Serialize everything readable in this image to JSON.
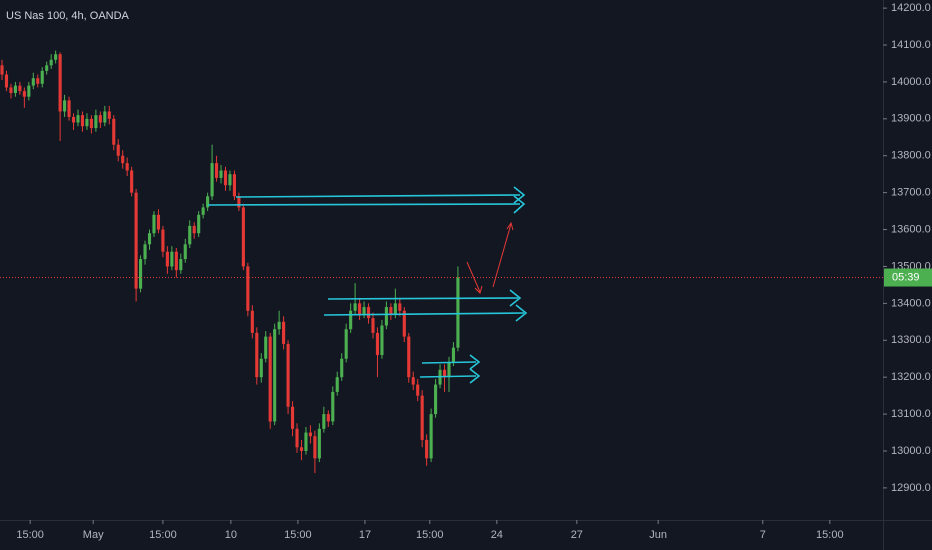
{
  "chart_data": {
    "type": "candlestick",
    "title": "US Nas 100, 4h, OANDA",
    "up_color": "#4caf50",
    "down_color": "#e53935",
    "countdown": "05:39",
    "xlim": [
      -0.45,
      197.1
    ],
    "ylim": [
      12813,
      14222
    ],
    "yticks": [
      {
        "value": 12900,
        "label": "12900.0"
      },
      {
        "value": 13000,
        "label": "13000.0"
      },
      {
        "value": 13100,
        "label": "13100.0"
      },
      {
        "value": 13200,
        "label": "13200.0"
      },
      {
        "value": 13300,
        "label": "13300.0"
      },
      {
        "value": 13400,
        "label": "13400.0"
      },
      {
        "value": 13500,
        "label": "13500.0"
      },
      {
        "value": 13600,
        "label": "13600.0"
      },
      {
        "value": 13700,
        "label": "13700.0"
      },
      {
        "value": 13800,
        "label": "13800.0"
      },
      {
        "value": 13900,
        "label": "13900.0"
      },
      {
        "value": 14000,
        "label": "14000.0"
      },
      {
        "value": 14100,
        "label": "14100.0"
      },
      {
        "value": 14200,
        "label": "14200.0"
      }
    ],
    "xticks": [
      {
        "value": 6.3,
        "label": "15:00"
      },
      {
        "value": 20.4,
        "label": "May"
      },
      {
        "value": 36,
        "label": "15:00"
      },
      {
        "value": 51.2,
        "label": "10"
      },
      {
        "value": 66.2,
        "label": "15:00"
      },
      {
        "value": 81.2,
        "label": "17"
      },
      {
        "value": 95.7,
        "label": "15:00"
      },
      {
        "value": 110.7,
        "label": "24"
      },
      {
        "value": 128.6,
        "label": "27"
      },
      {
        "value": 146.8,
        "label": "Jun"
      },
      {
        "value": 170.2,
        "label": "7"
      },
      {
        "value": 185.2,
        "label": "15:00"
      }
    ],
    "ohlc": [
      [
        14045,
        14060,
        14005,
        14020
      ],
      [
        14020,
        14030,
        13975,
        13985
      ],
      [
        13985,
        13995,
        13955,
        13970
      ],
      [
        13970,
        14000,
        13960,
        13990
      ],
      [
        13990,
        14000,
        13965,
        13975
      ],
      [
        13975,
        13985,
        13930,
        13960
      ],
      [
        13960,
        14000,
        13950,
        13990
      ],
      [
        13990,
        14025,
        13980,
        14010
      ],
      [
        14010,
        14020,
        13985,
        13995
      ],
      [
        13995,
        14040,
        13985,
        14030
      ],
      [
        14030,
        14055,
        14020,
        14045
      ],
      [
        14045,
        14075,
        14035,
        14060
      ],
      [
        14060,
        14085,
        14050,
        14075
      ],
      [
        14075,
        14080,
        13840,
        13920
      ],
      [
        13920,
        13965,
        13905,
        13950
      ],
      [
        13950,
        13960,
        13895,
        13905
      ],
      [
        13905,
        13915,
        13870,
        13890
      ],
      [
        13890,
        13925,
        13880,
        13910
      ],
      [
        13910,
        13920,
        13865,
        13880
      ],
      [
        13880,
        13915,
        13870,
        13900
      ],
      [
        13900,
        13910,
        13860,
        13875
      ],
      [
        13875,
        13925,
        13865,
        13910
      ],
      [
        13910,
        13920,
        13875,
        13890
      ],
      [
        13890,
        13935,
        13880,
        13920
      ],
      [
        13920,
        13935,
        13885,
        13900
      ],
      [
        13900,
        13910,
        13815,
        13830
      ],
      [
        13830,
        13845,
        13785,
        13800
      ],
      [
        13800,
        13815,
        13765,
        13780
      ],
      [
        13780,
        13795,
        13745,
        13760
      ],
      [
        13760,
        13770,
        13690,
        13700
      ],
      [
        13700,
        13710,
        13405,
        13440
      ],
      [
        13440,
        13530,
        13430,
        13520
      ],
      [
        13520,
        13570,
        13505,
        13560
      ],
      [
        13560,
        13600,
        13545,
        13590
      ],
      [
        13590,
        13650,
        13580,
        13640
      ],
      [
        13640,
        13655,
        13590,
        13600
      ],
      [
        13600,
        13610,
        13525,
        13540
      ],
      [
        13540,
        13555,
        13480,
        13500
      ],
      [
        13500,
        13555,
        13490,
        13540
      ],
      [
        13540,
        13550,
        13470,
        13490
      ],
      [
        13490,
        13535,
        13480,
        13520
      ],
      [
        13520,
        13575,
        13510,
        13560
      ],
      [
        13560,
        13625,
        13550,
        13610
      ],
      [
        13610,
        13620,
        13575,
        13590
      ],
      [
        13590,
        13650,
        13580,
        13640
      ],
      [
        13640,
        13670,
        13630,
        13660
      ],
      [
        13660,
        13700,
        13650,
        13690
      ],
      [
        13690,
        13830,
        13680,
        13780
      ],
      [
        13780,
        13800,
        13730,
        13740
      ],
      [
        13740,
        13775,
        13725,
        13760
      ],
      [
        13760,
        13770,
        13705,
        13720
      ],
      [
        13720,
        13760,
        13705,
        13750
      ],
      [
        13750,
        13760,
        13680,
        13690
      ],
      [
        13690,
        13700,
        13650,
        13660
      ],
      [
        13660,
        13670,
        13490,
        13500
      ],
      [
        13500,
        13510,
        13365,
        13380
      ],
      [
        13380,
        13395,
        13305,
        13320
      ],
      [
        13320,
        13335,
        13180,
        13200
      ],
      [
        13200,
        13265,
        13185,
        13250
      ],
      [
        13250,
        13325,
        13240,
        13310
      ],
      [
        13310,
        13320,
        13060,
        13080
      ],
      [
        13080,
        13345,
        13070,
        13330
      ],
      [
        13330,
        13380,
        13315,
        13350
      ],
      [
        13350,
        13365,
        13275,
        13290
      ],
      [
        13290,
        13300,
        13100,
        13120
      ],
      [
        13120,
        13135,
        13040,
        13060
      ],
      [
        13060,
        13075,
        12995,
        13010
      ],
      [
        13010,
        13030,
        12975,
        13000
      ],
      [
        13000,
        13065,
        12990,
        13050
      ],
      [
        13050,
        13070,
        13020,
        13040
      ],
      [
        13040,
        13055,
        12940,
        12980
      ],
      [
        12980,
        13075,
        12970,
        13060
      ],
      [
        13060,
        13120,
        13050,
        13100
      ],
      [
        13100,
        13110,
        13065,
        13080
      ],
      [
        13080,
        13175,
        13070,
        13160
      ],
      [
        13160,
        13215,
        13150,
        13200
      ],
      [
        13200,
        13265,
        13190,
        13250
      ],
      [
        13250,
        13345,
        13240,
        13330
      ],
      [
        13330,
        13400,
        13320,
        13380
      ],
      [
        13380,
        13455,
        13370,
        13400
      ],
      [
        13400,
        13415,
        13355,
        13370
      ],
      [
        13370,
        13405,
        13360,
        13390
      ],
      [
        13390,
        13400,
        13345,
        13360
      ],
      [
        13360,
        13375,
        13305,
        13320
      ],
      [
        13320,
        13335,
        13200,
        13260
      ],
      [
        13260,
        13355,
        13250,
        13340
      ],
      [
        13340,
        13405,
        13330,
        13390
      ],
      [
        13390,
        13400,
        13355,
        13370
      ],
      [
        13370,
        13440,
        13360,
        13400
      ],
      [
        13400,
        13415,
        13365,
        13380
      ],
      [
        13380,
        13390,
        13295,
        13310
      ],
      [
        13310,
        13320,
        13185,
        13200
      ],
      [
        13200,
        13215,
        13165,
        13180
      ],
      [
        13180,
        13195,
        13135,
        13150
      ],
      [
        13150,
        13165,
        13010,
        13030
      ],
      [
        13030,
        13045,
        12960,
        12980
      ],
      [
        12980,
        13115,
        12970,
        13100
      ],
      [
        13100,
        13195,
        13090,
        13180
      ],
      [
        13180,
        13235,
        13170,
        13220
      ],
      [
        13220,
        13235,
        13160,
        13200
      ],
      [
        13200,
        13255,
        13160,
        13240
      ],
      [
        13240,
        13295,
        13230,
        13280
      ],
      [
        13280,
        13500,
        13270,
        13470
      ]
    ]
  }
}
